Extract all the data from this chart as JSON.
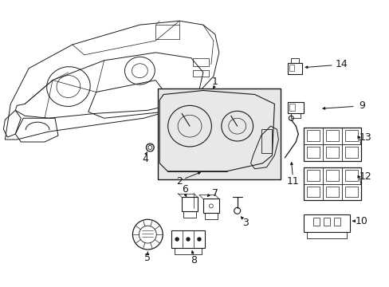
{
  "bg_color": "#ffffff",
  "fig_width": 4.89,
  "fig_height": 3.6,
  "dpi": 100,
  "line_color": "#1a1a1a",
  "box_fill": "#e8e8e8",
  "dash_fill": "#ffffff"
}
